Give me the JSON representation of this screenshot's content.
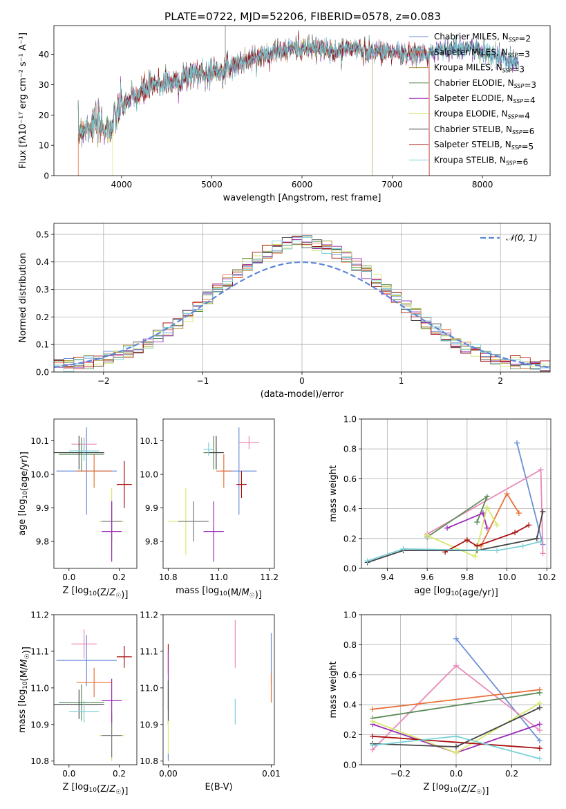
{
  "figure_title": "PLATE=0722, MJD=52206, FIBERID=0578, z=0.083",
  "chart_data": [
    {
      "type": "line",
      "id": "spectrum",
      "xlabel": "wavelength [Angstrom, rest frame]",
      "ylabel": "Flux [fλ10⁻¹⁷ erg cm⁻² s⁻¹ A⁻¹]",
      "xlim": [
        3250,
        8750
      ],
      "ylim": [
        0,
        49.5
      ],
      "xticks": [
        4000,
        5000,
        6000,
        7000,
        8000
      ],
      "yticks": [
        0,
        10,
        20,
        30,
        40
      ],
      "grid": false,
      "legend_position": "upper-right",
      "trend": {
        "x": [
          3520,
          3600,
          3700,
          3800,
          3900,
          3950,
          4000,
          4100,
          4200,
          4300,
          4400,
          4500,
          4600,
          4700,
          4800,
          4900,
          5000,
          5100,
          5200,
          5300,
          5400,
          5500,
          5600,
          5700,
          5800,
          5900,
          6000,
          6100,
          6200,
          6300,
          6400,
          6500,
          6600,
          6700,
          6800,
          6900,
          7000,
          7100,
          7200,
          7300,
          7400,
          7500,
          7600,
          7700,
          7800,
          7900,
          8000,
          8100,
          8200,
          8300,
          8400
        ],
        "y": [
          14,
          16,
          17,
          16,
          16,
          21,
          23,
          25,
          27,
          29,
          30,
          31,
          31,
          32,
          34,
          34,
          34,
          35,
          36,
          37,
          38,
          39,
          40,
          41,
          41,
          42,
          42,
          42,
          42,
          41,
          41,
          42,
          42,
          41,
          41,
          41,
          41,
          40,
          40,
          40,
          40,
          41,
          42,
          42,
          42,
          42,
          41,
          40,
          39,
          38,
          38
        ]
      },
      "series": [
        {
          "name": "Chabrier MILES, N_SSP=2",
          "color": "#6b8fd8"
        },
        {
          "name": "Salpeter MILES, N_SSP=3",
          "color": "#e8703a"
        },
        {
          "name": "Kroupa MILES, N_SSP=3",
          "color": "#a88a2c"
        },
        {
          "name": "Chabrier ELODIE, N_SSP=3",
          "color": "#5b8c5a"
        },
        {
          "name": "Salpeter ELODIE, N_SSP=4",
          "color": "#9a2bb8"
        },
        {
          "name": "Kroupa ELODIE, N_SSP=4",
          "color": "#d6e86a"
        },
        {
          "name": "Chabrier STELIB, N_SSP=6",
          "color": "#444444"
        },
        {
          "name": "Salpeter STELIB, N_SSP=5",
          "color": "#a81010"
        },
        {
          "name": "Kroupa STELIB, N_SSP=6",
          "color": "#7ad0d8"
        }
      ]
    },
    {
      "type": "histogram",
      "id": "residuals",
      "xlabel": "(data-model)/error",
      "ylabel": "Normed distribution",
      "xlim": [
        -2.5,
        2.5
      ],
      "ylim": [
        0,
        0.54
      ],
      "xticks": [
        -2,
        -1,
        0,
        1,
        2
      ],
      "yticks": [
        0.0,
        0.1,
        0.2,
        0.3,
        0.4,
        0.5
      ],
      "grid": true,
      "legend_position": "upper-right",
      "reference_curve": {
        "name": "𝒩(0, 1)",
        "mean": 0,
        "std": 1,
        "color": "#5b86d8"
      }
    },
    {
      "type": "errorbar",
      "id": "age-vs-Z",
      "xlabel": "Z [log10(Z/Z☉)]",
      "ylabel": "age  [log10(age/yr)]",
      "xlim": [
        -0.06,
        0.27
      ],
      "ylim": [
        9.72,
        10.165
      ],
      "xticks": [
        0.0,
        0.2
      ],
      "yticks": [
        9.8,
        9.9,
        10.0,
        10.1
      ],
      "points": [
        {
          "color": "#6b8fd8",
          "x": 0.07,
          "xerr": 0.12,
          "y": 10.01,
          "yerr": 0.13
        },
        {
          "color": "#e8703a",
          "x": 0.1,
          "xerr": 0.07,
          "y": 10.01,
          "yerr": 0.05
        },
        {
          "color": "#e889b8",
          "x": 0.06,
          "xerr": 0.05,
          "y": 10.09,
          "yerr": 0.02
        },
        {
          "color": "#5b8c5a",
          "x": 0.05,
          "xerr": 0.09,
          "y": 10.06,
          "yerr": 0.05
        },
        {
          "color": "#444444",
          "x": 0.04,
          "xerr": 0.1,
          "y": 10.065,
          "yerr": 0.05
        },
        {
          "color": "#7ad0d8",
          "x": 0.06,
          "xerr": 0.06,
          "y": 10.07,
          "yerr": 0.03
        },
        {
          "color": "#a81010",
          "x": 0.22,
          "xerr": 0.03,
          "y": 9.97,
          "yerr": 0.07
        },
        {
          "color": "#d6e86a",
          "x": 0.17,
          "xerr": 0.05,
          "y": 9.86,
          "yerr": 0.1
        },
        {
          "color": "#7a7a7a",
          "x": 0.17,
          "xerr": 0.04,
          "y": 9.86,
          "yerr": 0.06
        },
        {
          "color": "#9a2bb8",
          "x": 0.17,
          "xerr": 0.04,
          "y": 9.83,
          "yerr": 0.09
        }
      ]
    },
    {
      "type": "errorbar",
      "id": "age-vs-mass",
      "xlabel": "mass [log10(M/M☉)]",
      "ylabel": "",
      "xlim": [
        10.78,
        11.22
      ],
      "ylim": [
        9.72,
        10.165
      ],
      "xticks": [
        10.8,
        11.0,
        11.2
      ],
      "yticks": [
        9.8,
        9.9,
        10.0,
        10.1
      ],
      "points": [
        {
          "color": "#6b8fd8",
          "x": 11.08,
          "xerr": 0.07,
          "y": 10.01,
          "yerr": 0.13
        },
        {
          "color": "#e8703a",
          "x": 11.02,
          "xerr": 0.03,
          "y": 10.01,
          "yerr": 0.05
        },
        {
          "color": "#e889b8",
          "x": 11.12,
          "xerr": 0.04,
          "y": 10.095,
          "yerr": 0.02
        },
        {
          "color": "#5b8c5a",
          "x": 10.98,
          "xerr": 0.04,
          "y": 10.065,
          "yerr": 0.05
        },
        {
          "color": "#444444",
          "x": 10.99,
          "xerr": 0.03,
          "y": 10.065,
          "yerr": 0.05
        },
        {
          "color": "#7ad0d8",
          "x": 10.96,
          "xerr": 0.02,
          "y": 10.075,
          "yerr": 0.02
        },
        {
          "color": "#a81010",
          "x": 11.09,
          "xerr": 0.02,
          "y": 9.97,
          "yerr": 0.04
        },
        {
          "color": "#d6e86a",
          "x": 10.87,
          "xerr": 0.07,
          "y": 9.86,
          "yerr": 0.1
        },
        {
          "color": "#7a7a7a",
          "x": 10.9,
          "xerr": 0.06,
          "y": 9.86,
          "yerr": 0.06
        },
        {
          "color": "#9a2bb8",
          "x": 10.98,
          "xerr": 0.04,
          "y": 9.83,
          "yerr": 0.09
        }
      ]
    },
    {
      "type": "line",
      "id": "weight-vs-age",
      "xlabel": "age  [log10(age/yr)]",
      "ylabel": "mass weight",
      "xlim": [
        9.27,
        10.22
      ],
      "ylim": [
        0,
        1.0
      ],
      "xticks": [
        9.4,
        9.6,
        9.8,
        10.0,
        10.2
      ],
      "yticks": [
        0.0,
        0.2,
        0.4,
        0.6,
        0.8,
        1.0
      ],
      "grid": true,
      "series": [
        {
          "color": "#6b8fd8",
          "x": [
            10.05,
            10.18
          ],
          "y": [
            0.84,
            0.16
          ]
        },
        {
          "color": "#e889b8",
          "x": [
            9.6,
            10.17,
            10.18
          ],
          "y": [
            0.23,
            0.66,
            0.1
          ]
        },
        {
          "color": "#e8703a",
          "x": [
            9.87,
            10.0,
            10.06
          ],
          "y": [
            0.15,
            0.5,
            0.37
          ]
        },
        {
          "color": "#5b8c5a",
          "x": [
            9.6,
            9.9,
            9.85
          ],
          "y": [
            0.21,
            0.48,
            0.31
          ]
        },
        {
          "color": "#9a2bb8",
          "x": [
            9.7,
            9.88,
            9.9
          ],
          "y": [
            0.27,
            0.37,
            0.27
          ]
        },
        {
          "color": "#d6e86a",
          "x": [
            9.6,
            9.84,
            9.9,
            9.95
          ],
          "y": [
            0.22,
            0.08,
            0.41,
            0.29
          ]
        },
        {
          "color": "#a81010",
          "x": [
            9.69,
            9.8,
            9.85,
            10.04,
            10.11
          ],
          "y": [
            0.11,
            0.19,
            0.15,
            0.24,
            0.29
          ]
        },
        {
          "color": "#444444",
          "x": [
            9.3,
            9.48,
            9.85,
            10.15,
            10.18
          ],
          "y": [
            0.04,
            0.12,
            0.12,
            0.2,
            0.38
          ]
        },
        {
          "color": "#7ad0d8",
          "x": [
            9.3,
            9.48,
            9.95,
            10.08,
            10.17
          ],
          "y": [
            0.05,
            0.13,
            0.12,
            0.15,
            0.18
          ]
        }
      ]
    },
    {
      "type": "errorbar",
      "id": "mass-vs-Z",
      "xlabel": "Z [log10(Z/Z☉)]",
      "ylabel": "mass [log10(M/M☉)]",
      "xlim": [
        -0.06,
        0.27
      ],
      "ylim": [
        10.79,
        11.2
      ],
      "xticks": [
        0.0,
        0.2
      ],
      "yticks": [
        10.8,
        10.9,
        11.0,
        11.1,
        11.2
      ],
      "points": [
        {
          "color": "#6b8fd8",
          "x": 0.07,
          "xerr": 0.12,
          "y": 11.075,
          "yerr": 0.07
        },
        {
          "color": "#e8703a",
          "x": 0.1,
          "xerr": 0.07,
          "y": 11.015,
          "yerr": 0.04
        },
        {
          "color": "#e889b8",
          "x": 0.06,
          "xerr": 0.05,
          "y": 11.12,
          "yerr": 0.04
        },
        {
          "color": "#5b8c5a",
          "x": 0.05,
          "xerr": 0.09,
          "y": 10.96,
          "yerr": 0.05
        },
        {
          "color": "#444444",
          "x": 0.04,
          "xerr": 0.1,
          "y": 10.955,
          "yerr": 0.04
        },
        {
          "color": "#7ad0d8",
          "x": 0.06,
          "xerr": 0.06,
          "y": 10.935,
          "yerr": 0.03
        },
        {
          "color": "#a81010",
          "x": 0.22,
          "xerr": 0.03,
          "y": 11.085,
          "yerr": 0.03
        },
        {
          "color": "#d6e86a",
          "x": 0.17,
          "xerr": 0.05,
          "y": 10.87,
          "yerr": 0.07
        },
        {
          "color": "#7a7a7a",
          "x": 0.17,
          "xerr": 0.04,
          "y": 10.87,
          "yerr": 0.06
        },
        {
          "color": "#9a2bb8",
          "x": 0.17,
          "xerr": 0.04,
          "y": 10.965,
          "yerr": 0.06
        }
      ]
    },
    {
      "type": "errorbar",
      "id": "mass-vs-EBV",
      "xlabel": "E(B-V)",
      "ylabel": "",
      "xlim": [
        -0.0005,
        0.0103
      ],
      "ylim": [
        10.79,
        11.2
      ],
      "xticks": [
        0.0,
        0.01
      ],
      "yticks": [
        10.8,
        10.9,
        11.0,
        11.1,
        11.2
      ],
      "points": [
        {
          "color": "#a81010",
          "x": 0.0,
          "xerr": 0.0,
          "y": 11.08,
          "yerr": 0.04
        },
        {
          "color": "#9a2bb8",
          "x": 0.0,
          "xerr": 0.0,
          "y": 11.02,
          "yerr": 0.08
        },
        {
          "color": "#444444",
          "x": 0.0,
          "xerr": 0.0,
          "y": 10.96,
          "yerr": 0.06
        },
        {
          "color": "#d6e86a",
          "x": 0.0,
          "xerr": 0.0,
          "y": 10.86,
          "yerr": 0.05
        },
        {
          "color": "#6b8fd8",
          "x": 0.0,
          "xerr": 0.0,
          "y": 10.81,
          "yerr": 0.01
        },
        {
          "color": "#e889b8",
          "x": 0.0065,
          "xerr": 0.0,
          "y": 11.12,
          "yerr": 0.065
        },
        {
          "color": "#7ad0d8",
          "x": 0.0065,
          "xerr": 0.0,
          "y": 10.935,
          "yerr": 0.035
        },
        {
          "color": "#6b8fd8",
          "x": 0.01,
          "xerr": 0.0,
          "y": 11.08,
          "yerr": 0.07
        },
        {
          "color": "#e8703a",
          "x": 0.01,
          "xerr": 0.0,
          "y": 11.0,
          "yerr": 0.04
        }
      ]
    },
    {
      "type": "line",
      "id": "weight-vs-Z",
      "xlabel": "Z [log10(Z/Z☉)]",
      "ylabel": "mass weight",
      "xlim": [
        -0.34,
        0.34
      ],
      "ylim": [
        0,
        1.0
      ],
      "xticks": [
        -0.2,
        0.0,
        0.2
      ],
      "yticks": [
        0.0,
        0.2,
        0.4,
        0.6,
        0.8,
        1.0
      ],
      "grid": true,
      "series": [
        {
          "color": "#6b8fd8",
          "x": [
            0.0,
            0.3
          ],
          "y": [
            0.84,
            0.16
          ]
        },
        {
          "color": "#e889b8",
          "x": [
            -0.3,
            0.0,
            0.3
          ],
          "y": [
            0.1,
            0.66,
            0.23
          ]
        },
        {
          "color": "#e8703a",
          "x": [
            -0.3,
            0.3
          ],
          "y": [
            0.37,
            0.5
          ]
        },
        {
          "color": "#5b8c5a",
          "x": [
            -0.3,
            0.3
          ],
          "y": [
            0.31,
            0.48
          ]
        },
        {
          "color": "#9a2bb8",
          "x": [
            -0.3,
            0.0,
            0.3
          ],
          "y": [
            0.27,
            0.08,
            0.27
          ]
        },
        {
          "color": "#d6e86a",
          "x": [
            -0.3,
            0.0,
            0.3
          ],
          "y": [
            0.29,
            0.08,
            0.41
          ]
        },
        {
          "color": "#a81010",
          "x": [
            -0.3,
            0.3
          ],
          "y": [
            0.19,
            0.11
          ]
        },
        {
          "color": "#444444",
          "x": [
            -0.3,
            0.0,
            0.3
          ],
          "y": [
            0.14,
            0.12,
            0.38
          ]
        },
        {
          "color": "#7ad0d8",
          "x": [
            -0.3,
            0.0,
            0.3
          ],
          "y": [
            0.13,
            0.19,
            0.04
          ]
        }
      ]
    }
  ]
}
